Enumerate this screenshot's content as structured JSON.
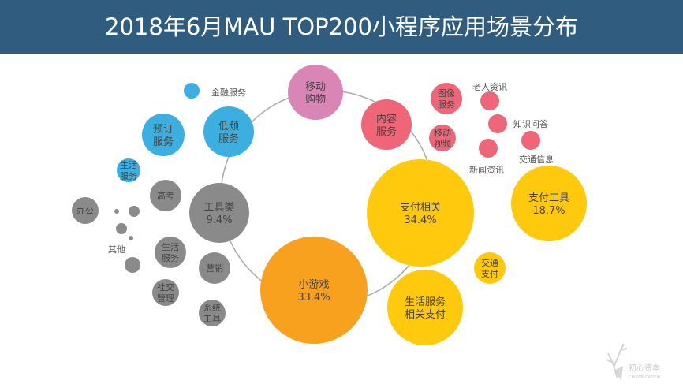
{
  "title": "2018年6月MAU TOP200小程序应用场景分布",
  "logo_text": "初心资本 CHUXIN CAPITAL",
  "colors": {
    "pink": "#d985b5",
    "red": "#ee6677",
    "yellow": "#ffc90e",
    "orange": "#f7a11f",
    "gray": "#8a8a8a",
    "blue": "#3bb0e0",
    "header": "#2f5c7f"
  },
  "bubbles": [
    {
      "label": [
        "移动",
        "购物"
      ],
      "color": "pink"
    },
    {
      "label": [
        "内容",
        "服务"
      ],
      "color": "red"
    },
    {
      "label": [
        "支付相关",
        "34.4%"
      ],
      "color": "yellow"
    },
    {
      "label": [
        "小游戏",
        "33.4%"
      ],
      "color": "orange"
    },
    {
      "label": [
        "工具类",
        "9.4%"
      ],
      "color": "gray"
    },
    {
      "label": [
        "低频",
        "服务"
      ],
      "color": "blue"
    },
    {
      "label": [],
      "color": "blue",
      "outside": "金融服务"
    },
    {
      "label": [
        "预订",
        "服务"
      ],
      "color": "blue"
    },
    {
      "label": [
        "生活",
        "服务"
      ],
      "color": "blue"
    },
    {
      "label": [
        "高考"
      ],
      "color": "gray"
    },
    {
      "label": [
        "办公"
      ],
      "color": "gray"
    },
    {
      "label": [],
      "color": "gray"
    },
    {
      "label": [],
      "color": "gray"
    },
    {
      "label": [],
      "color": "gray"
    },
    {
      "label": [],
      "color": "gray"
    },
    {
      "label": [],
      "color": "gray"
    },
    {
      "label": [
        "生活",
        "服务"
      ],
      "color": "gray"
    },
    {
      "label": [
        "营销"
      ],
      "color": "gray"
    },
    {
      "label": [
        "社交",
        "管理"
      ],
      "color": "gray"
    },
    {
      "label": [
        "系统",
        "工具"
      ],
      "color": "gray"
    },
    {
      "label": [
        "图像",
        "服务"
      ],
      "color": "red"
    },
    {
      "label": [
        "移动",
        "视频"
      ],
      "color": "red"
    },
    {
      "label": [],
      "color": "red",
      "outside": "老人资讯"
    },
    {
      "label": [],
      "color": "red",
      "outside": "知识问答"
    },
    {
      "label": [],
      "color": "red",
      "outside": "新闻资讯"
    },
    {
      "label": [],
      "color": "red",
      "outside": "交通信息"
    },
    {
      "label": [
        "支付工具",
        "18.7%"
      ],
      "color": "yellow"
    },
    {
      "label": [
        "交通",
        "支付"
      ],
      "color": "yellow"
    },
    {
      "label": [
        "生活服务",
        "相关支付"
      ],
      "color": "yellow"
    }
  ],
  "other_label": "其他"
}
